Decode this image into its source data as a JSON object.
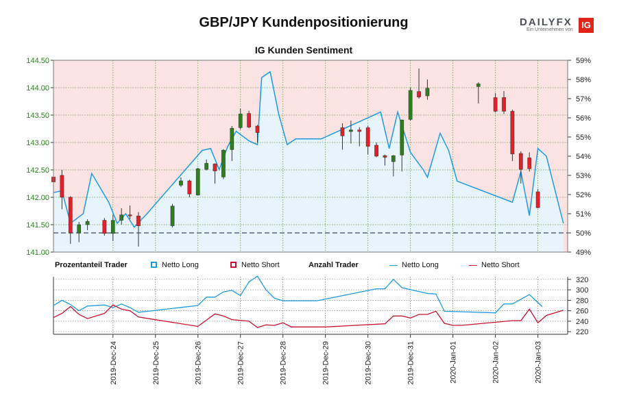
{
  "title": "GBP/JPY Kundenpositionierung",
  "subtitle": "IG Kunden Sentiment",
  "logo": {
    "word": "DAILY",
    "word_fx": "FX",
    "tagline": "Ein Unternehmen von",
    "badge": "IG"
  },
  "legend": {
    "pct_head": "Prozentanteil Trader",
    "pct_long": "Netto Long",
    "pct_short": "Netto Short",
    "count_head": "Anzahl Trader",
    "count_long": "Netto Long",
    "count_short": "Netto Short"
  },
  "colors": {
    "long": "#1e9be0",
    "short": "#c8102e",
    "up": "#2e7d1f",
    "down": "#e0202a",
    "price_axis": "#2e7d1f",
    "bg_long": "#e7f4fb",
    "bg_short": "#fbe3e3"
  },
  "chart_data": {
    "type": "candlestick",
    "price_axis": {
      "ticks": [
        "141.00",
        "141.50",
        "142.00",
        "142.50",
        "143.00",
        "143.50",
        "144.00",
        "144.50"
      ],
      "range": [
        141.0,
        144.5
      ]
    },
    "sentiment_axis": {
      "ticks": [
        "49%",
        "50%",
        "51%",
        "52%",
        "53%",
        "54%",
        "55%",
        "56%",
        "57%",
        "58%",
        "59%"
      ],
      "range": [
        49,
        59
      ]
    },
    "count_axis": {
      "ticks": [
        "220",
        "240",
        "260",
        "280",
        "300",
        "320"
      ],
      "range": [
        215,
        325
      ]
    },
    "date_labels": [
      "2019-Dec-24",
      "2019-Dec-25",
      "2019-Dec-26",
      "2019-Dec-27",
      "2019-Dec-28",
      "2019-Dec-29",
      "2019-Dec-30",
      "2019-Dec-31",
      "2020-Jan-01",
      "2020-Jan-02",
      "2020-Jan-03"
    ],
    "date_positions": [
      2.8,
      4.8,
      6.8,
      8.8,
      10.8,
      12.8,
      14.8,
      16.8,
      18.8,
      20.8,
      22.8
    ],
    "x_range": [
      0,
      24.2
    ],
    "candles": [
      {
        "t": 0.0,
        "o": 142.37,
        "h": 142.47,
        "l": 142.25,
        "c": 142.28
      },
      {
        "t": 0.4,
        "o": 142.4,
        "h": 142.5,
        "l": 141.78,
        "c": 142.0
      },
      {
        "t": 0.8,
        "o": 142.0,
        "h": 142.02,
        "l": 141.15,
        "c": 141.35
      },
      {
        "t": 1.2,
        "o": 141.35,
        "h": 141.55,
        "l": 141.18,
        "c": 141.5
      },
      {
        "t": 1.6,
        "o": 141.5,
        "h": 141.6,
        "l": 141.4,
        "c": 141.56
      },
      {
        "t": 2.4,
        "o": 141.58,
        "h": 141.62,
        "l": 141.3,
        "c": 141.34
      },
      {
        "t": 2.8,
        "o": 141.34,
        "h": 141.68,
        "l": 141.2,
        "c": 141.58
      },
      {
        "t": 3.2,
        "o": 141.58,
        "h": 141.8,
        "l": 141.5,
        "c": 141.68
      },
      {
        "t": 3.6,
        "o": 141.68,
        "h": 141.85,
        "l": 141.6,
        "c": 141.66
      },
      {
        "t": 4.0,
        "o": 141.66,
        "h": 141.73,
        "l": 141.1,
        "c": 141.48
      },
      {
        "t": 5.6,
        "o": 141.48,
        "h": 141.88,
        "l": 141.45,
        "c": 141.84
      },
      {
        "t": 6.0,
        "o": 142.22,
        "h": 142.36,
        "l": 142.19,
        "c": 142.3
      },
      {
        "t": 6.4,
        "o": 142.3,
        "h": 142.32,
        "l": 142.0,
        "c": 142.06
      },
      {
        "t": 6.8,
        "o": 142.04,
        "h": 142.54,
        "l": 142.03,
        "c": 142.52
      },
      {
        "t": 7.2,
        "o": 142.51,
        "h": 142.69,
        "l": 142.49,
        "c": 142.62
      },
      {
        "t": 7.6,
        "o": 142.61,
        "h": 142.62,
        "l": 142.25,
        "c": 142.48
      },
      {
        "t": 8.0,
        "o": 142.37,
        "h": 142.88,
        "l": 142.33,
        "c": 142.86
      },
      {
        "t": 8.4,
        "o": 142.87,
        "h": 143.3,
        "l": 142.66,
        "c": 143.26
      },
      {
        "t": 8.8,
        "o": 143.27,
        "h": 143.62,
        "l": 143.24,
        "c": 143.52
      },
      {
        "t": 9.2,
        "o": 143.53,
        "h": 143.58,
        "l": 143.26,
        "c": 143.28
      },
      {
        "t": 9.6,
        "o": 143.3,
        "h": 143.32,
        "l": 143.0,
        "c": 143.18
      },
      {
        "t": 13.6,
        "o": 143.27,
        "h": 143.35,
        "l": 142.87,
        "c": 143.12
      },
      {
        "t": 14.0,
        "o": 143.2,
        "h": 143.4,
        "l": 142.98,
        "c": 143.23
      },
      {
        "t": 14.4,
        "o": 143.23,
        "h": 143.28,
        "l": 142.93,
        "c": 143.2
      },
      {
        "t": 14.8,
        "o": 143.27,
        "h": 143.3,
        "l": 142.78,
        "c": 142.93
      },
      {
        "t": 15.2,
        "o": 142.95,
        "h": 143.0,
        "l": 142.73,
        "c": 142.75
      },
      {
        "t": 15.6,
        "o": 142.76,
        "h": 142.78,
        "l": 142.58,
        "c": 142.73
      },
      {
        "t": 16.0,
        "o": 142.65,
        "h": 142.77,
        "l": 142.38,
        "c": 142.76
      },
      {
        "t": 16.4,
        "o": 142.77,
        "h": 143.42,
        "l": 142.47,
        "c": 143.41
      },
      {
        "t": 16.8,
        "o": 143.42,
        "h": 144.0,
        "l": 143.4,
        "c": 143.95
      },
      {
        "t": 17.2,
        "o": 143.93,
        "h": 144.35,
        "l": 143.8,
        "c": 143.83
      },
      {
        "t": 17.6,
        "o": 143.85,
        "h": 144.15,
        "l": 143.78,
        "c": 143.99
      },
      {
        "t": 20.0,
        "o": 144.02,
        "h": 144.1,
        "l": 143.71,
        "c": 144.07
      },
      {
        "t": 20.8,
        "o": 143.82,
        "h": 143.9,
        "l": 143.55,
        "c": 143.57
      },
      {
        "t": 21.2,
        "o": 143.82,
        "h": 143.94,
        "l": 143.52,
        "c": 143.57
      },
      {
        "t": 21.6,
        "o": 143.57,
        "h": 143.6,
        "l": 142.66,
        "c": 142.79
      },
      {
        "t": 22.0,
        "o": 142.8,
        "h": 142.84,
        "l": 142.25,
        "c": 142.51
      },
      {
        "t": 22.4,
        "o": 142.72,
        "h": 142.82,
        "l": 142.47,
        "c": 142.52
      },
      {
        "t": 22.8,
        "o": 142.1,
        "h": 142.15,
        "l": 141.8,
        "c": 141.81
      }
    ],
    "sentiment_long_pct": [
      [
        0.0,
        52.1
      ],
      [
        0.4,
        52.2
      ],
      [
        0.8,
        50.5
      ],
      [
        1.4,
        51.0
      ],
      [
        1.8,
        53.1
      ],
      [
        2.6,
        51.6
      ],
      [
        3.0,
        50.5
      ],
      [
        3.4,
        51.0
      ],
      [
        3.8,
        50.3
      ],
      [
        4.4,
        51.0
      ],
      [
        7.0,
        54.3
      ],
      [
        7.4,
        54.4
      ],
      [
        7.8,
        53.3
      ],
      [
        8.2,
        54.5
      ],
      [
        8.6,
        55.3
      ],
      [
        9.2,
        54.8
      ],
      [
        9.6,
        54.6
      ],
      [
        9.8,
        58.1
      ],
      [
        10.2,
        58.4
      ],
      [
        10.6,
        56.2
      ],
      [
        11.0,
        54.6
      ],
      [
        11.4,
        54.9
      ],
      [
        12.6,
        54.9
      ],
      [
        15.4,
        56.3
      ],
      [
        15.8,
        54.4
      ],
      [
        16.2,
        56.3
      ],
      [
        16.8,
        54.2
      ],
      [
        17.4,
        53.3
      ],
      [
        17.6,
        52.9
      ],
      [
        18.2,
        55.2
      ],
      [
        18.6,
        54.3
      ],
      [
        19.0,
        52.7
      ],
      [
        21.6,
        51.6
      ],
      [
        22.0,
        53.2
      ],
      [
        22.4,
        50.9
      ],
      [
        22.8,
        54.4
      ],
      [
        23.2,
        54.0
      ],
      [
        24.0,
        50.5
      ]
    ],
    "count_long": [
      [
        0.0,
        270
      ],
      [
        0.4,
        280
      ],
      [
        0.8,
        272
      ],
      [
        1.2,
        260
      ],
      [
        1.6,
        269
      ],
      [
        2.4,
        271
      ],
      [
        2.8,
        266
      ],
      [
        3.2,
        273
      ],
      [
        3.6,
        266
      ],
      [
        4.0,
        257
      ],
      [
        6.8,
        270
      ],
      [
        7.2,
        286
      ],
      [
        7.6,
        286
      ],
      [
        8.0,
        296
      ],
      [
        8.4,
        299
      ],
      [
        8.8,
        289
      ],
      [
        9.2,
        315
      ],
      [
        9.6,
        326
      ],
      [
        10.0,
        300
      ],
      [
        10.4,
        284
      ],
      [
        10.8,
        279
      ],
      [
        12.4,
        279
      ],
      [
        15.2,
        302
      ],
      [
        15.6,
        302
      ],
      [
        16.0,
        320
      ],
      [
        16.4,
        304
      ],
      [
        17.6,
        293
      ],
      [
        18.0,
        292
      ],
      [
        18.4,
        259
      ],
      [
        20.8,
        256
      ],
      [
        21.2,
        273
      ],
      [
        21.6,
        273
      ],
      [
        22.4,
        291
      ],
      [
        23.0,
        268
      ]
    ],
    "count_short": [
      [
        0.0,
        247
      ],
      [
        0.4,
        255
      ],
      [
        0.8,
        268
      ],
      [
        1.2,
        253
      ],
      [
        1.6,
        245
      ],
      [
        2.4,
        255
      ],
      [
        2.8,
        271
      ],
      [
        3.2,
        263
      ],
      [
        3.6,
        260
      ],
      [
        4.0,
        248
      ],
      [
        6.8,
        230
      ],
      [
        7.6,
        254
      ],
      [
        8.0,
        250
      ],
      [
        8.4,
        243
      ],
      [
        9.2,
        240
      ],
      [
        9.6,
        228
      ],
      [
        10.0,
        233
      ],
      [
        10.4,
        232
      ],
      [
        10.8,
        237
      ],
      [
        11.2,
        229
      ],
      [
        12.8,
        229
      ],
      [
        15.6,
        235
      ],
      [
        16.0,
        250
      ],
      [
        16.4,
        250
      ],
      [
        16.8,
        246
      ],
      [
        17.2,
        253
      ],
      [
        17.6,
        253
      ],
      [
        18.0,
        259
      ],
      [
        18.4,
        236
      ],
      [
        18.8,
        232
      ],
      [
        19.2,
        232
      ],
      [
        21.6,
        241
      ],
      [
        22.0,
        241
      ],
      [
        22.4,
        263
      ],
      [
        22.8,
        237
      ],
      [
        23.2,
        251
      ],
      [
        24.0,
        261
      ]
    ],
    "reference_line_pct": 50
  }
}
